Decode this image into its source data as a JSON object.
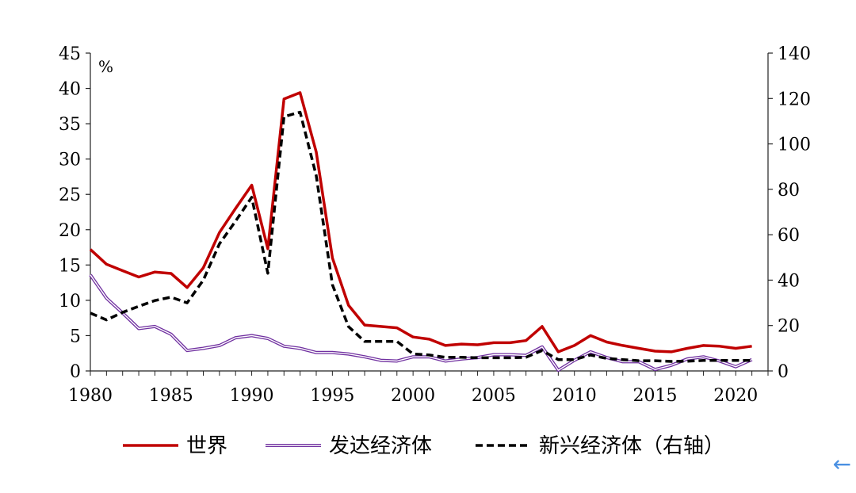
{
  "chart_data": {
    "type": "line",
    "unit_label": "%",
    "x": [
      1980,
      1981,
      1982,
      1983,
      1984,
      1985,
      1986,
      1987,
      1988,
      1989,
      1990,
      1991,
      1992,
      1993,
      1994,
      1995,
      1996,
      1997,
      1998,
      1999,
      2000,
      2001,
      2002,
      2003,
      2004,
      2005,
      2006,
      2007,
      2008,
      2009,
      2010,
      2011,
      2012,
      2013,
      2014,
      2015,
      2016,
      2017,
      2018,
      2019,
      2020,
      2021
    ],
    "xlim": [
      1980,
      2022
    ],
    "x_ticks": [
      1980,
      1985,
      1990,
      1995,
      2000,
      2005,
      2010,
      2015,
      2020
    ],
    "y_left": {
      "lim": [
        0,
        45
      ],
      "ticks": [
        0,
        5,
        10,
        15,
        20,
        25,
        30,
        35,
        40,
        45
      ]
    },
    "y_right": {
      "lim": [
        0,
        140
      ],
      "ticks": [
        0,
        20,
        40,
        60,
        80,
        100,
        120,
        140
      ]
    },
    "series": [
      {
        "name": "世界",
        "axis": "left",
        "color": "#c00000",
        "style": "solid",
        "values": [
          17.2,
          15.1,
          14.2,
          13.3,
          14.0,
          13.8,
          11.8,
          14.6,
          19.6,
          23.0,
          26.3,
          17.3,
          38.5,
          39.4,
          31.0,
          16.0,
          9.3,
          6.5,
          6.3,
          6.1,
          4.8,
          4.5,
          3.6,
          3.8,
          3.7,
          4.0,
          4.0,
          4.3,
          6.3,
          2.7,
          3.6,
          5.0,
          4.1,
          3.6,
          3.2,
          2.8,
          2.7,
          3.2,
          3.6,
          3.5,
          3.2,
          3.5
        ]
      },
      {
        "name": "发达经济体",
        "axis": "left",
        "color": "#7030a0",
        "style": "double",
        "values": [
          13.6,
          10.3,
          8.2,
          6.0,
          6.3,
          5.2,
          2.9,
          3.2,
          3.6,
          4.7,
          5.0,
          4.6,
          3.5,
          3.2,
          2.6,
          2.6,
          2.4,
          2.0,
          1.5,
          1.4,
          2.0,
          2.0,
          1.4,
          1.7,
          1.9,
          2.3,
          2.3,
          2.2,
          3.4,
          0.1,
          1.5,
          2.7,
          1.9,
          1.3,
          1.3,
          0.2,
          0.8,
          1.7,
          2.0,
          1.4,
          0.6,
          1.6
        ]
      },
      {
        "name": "新兴经济体（右轴）",
        "axis": "right",
        "color": "#000000",
        "style": "dashed",
        "values": [
          25.5,
          22.5,
          25.8,
          28.5,
          31.0,
          32.5,
          30.0,
          40.0,
          56.0,
          66.0,
          76.5,
          43.0,
          112.0,
          114.0,
          86.0,
          38.0,
          19.5,
          13.0,
          13.0,
          13.0,
          7.5,
          7.0,
          6.0,
          6.0,
          5.8,
          5.8,
          5.8,
          6.0,
          9.0,
          5.0,
          5.0,
          7.0,
          5.5,
          5.0,
          4.5,
          4.5,
          4.2,
          4.3,
          4.6,
          4.6,
          4.6,
          4.6
        ]
      }
    ]
  },
  "nav": {
    "back_icon": "arrow-left-icon",
    "back_glyph": "←"
  }
}
